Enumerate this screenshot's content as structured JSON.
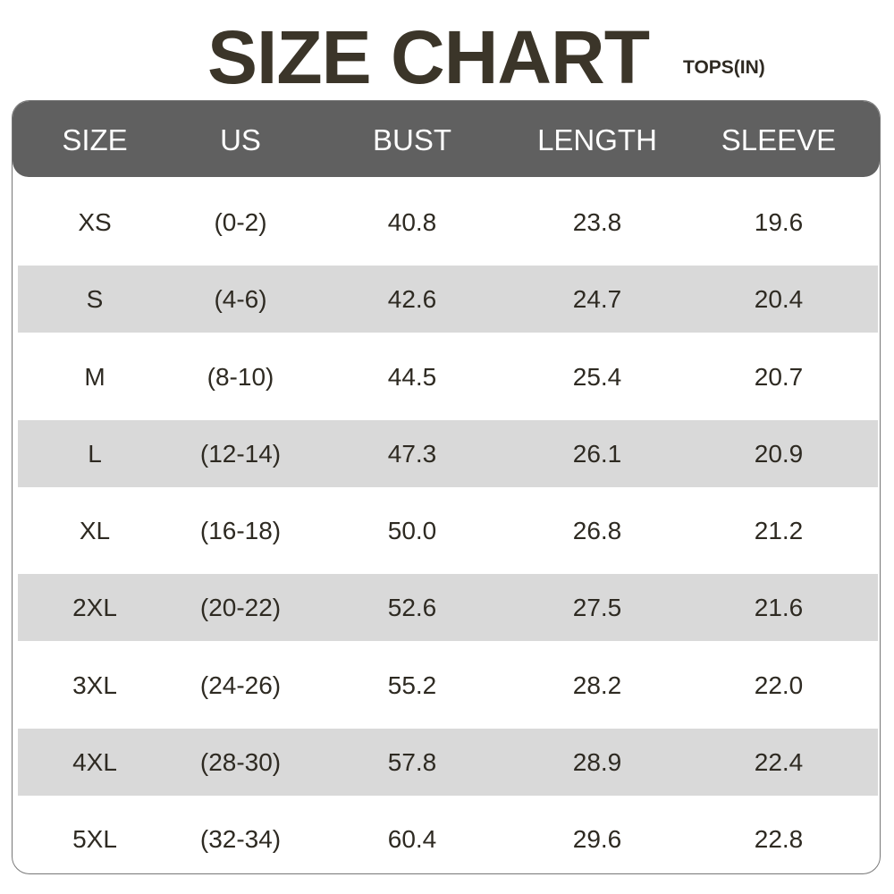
{
  "title": "SIZE CHART",
  "subtitle": "TOPS(IN)",
  "colors": {
    "header_bg": "#606060",
    "stripe_bg": "#d9d9d9",
    "text": "#2e2a22"
  },
  "columns": [
    "SIZE",
    "US",
    "BUST",
    "LENGTH",
    "SLEEVE"
  ],
  "rows": [
    [
      "XS",
      "(0-2)",
      "40.8",
      "23.8",
      "19.6"
    ],
    [
      "S",
      "(4-6)",
      "42.6",
      "24.7",
      "20.4"
    ],
    [
      "M",
      "(8-10)",
      "44.5",
      "25.4",
      "20.7"
    ],
    [
      "L",
      "(12-14)",
      "47.3",
      "26.1",
      "20.9"
    ],
    [
      "XL",
      "(16-18)",
      "50.0",
      "26.8",
      "21.2"
    ],
    [
      "2XL",
      "(20-22)",
      "52.6",
      "27.5",
      "21.6"
    ],
    [
      "3XL",
      "(24-26)",
      "55.2",
      "28.2",
      "22.0"
    ],
    [
      "4XL",
      "(28-30)",
      "57.8",
      "28.9",
      "22.4"
    ],
    [
      "5XL",
      "(32-34)",
      "60.4",
      "29.6",
      "22.8"
    ]
  ]
}
